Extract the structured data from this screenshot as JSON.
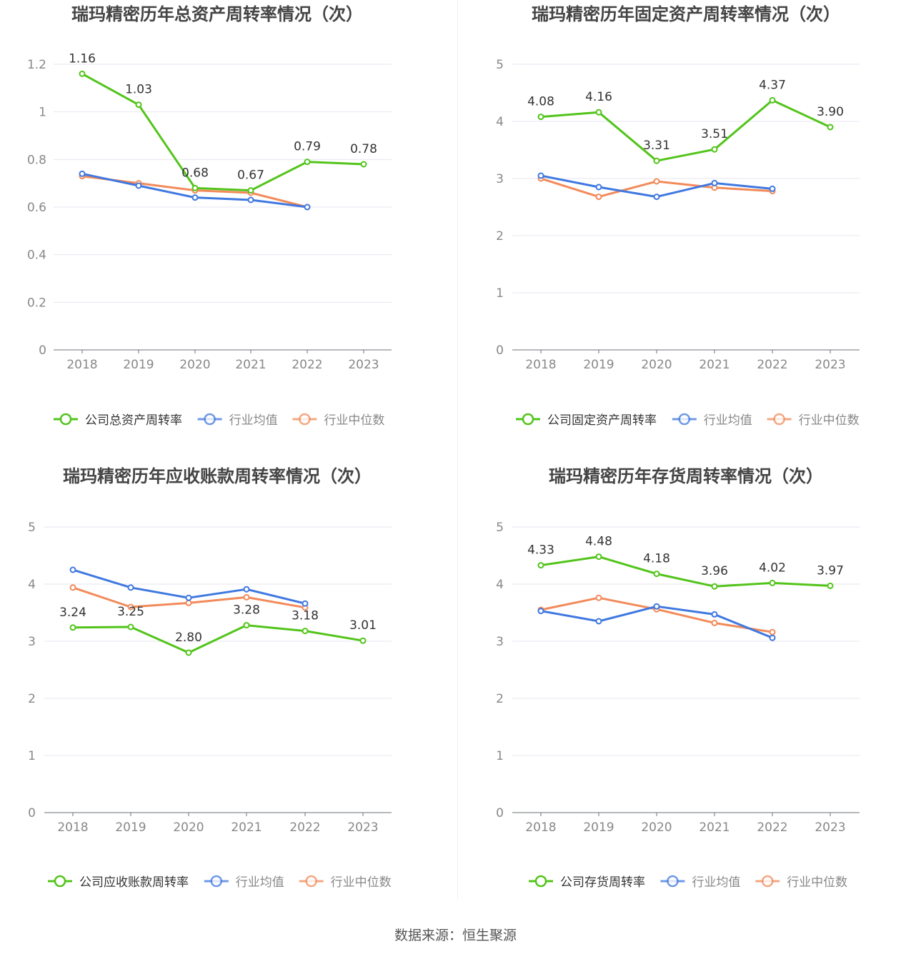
{
  "footer": "数据来源：恒生聚源",
  "legend": {
    "avg": "行业均值",
    "median": "行业中位数"
  },
  "colors": {
    "company": "#52c41a",
    "avg": "#3f78e0",
    "median": "#f28a5a"
  },
  "chart_data": [
    {
      "type": "line",
      "title": "瑞玛精密历年总资产周转率情况（次）",
      "categories": [
        "2018",
        "2019",
        "2020",
        "2021",
        "2022",
        "2023"
      ],
      "y_ticks": [
        "0",
        "0.2",
        "0.4",
        "0.6",
        "0.8",
        "1",
        "1.2"
      ],
      "ylim": [
        0,
        1.2
      ],
      "series": [
        {
          "name": "公司总资产周转率",
          "values": [
            1.16,
            1.03,
            0.68,
            0.67,
            0.79,
            0.78
          ],
          "labels": [
            "1.16",
            "1.03",
            "0.68",
            "0.67",
            "0.79",
            "0.78"
          ]
        },
        {
          "name": "行业均值",
          "values": [
            0.74,
            0.69,
            0.64,
            0.63,
            0.6,
            null
          ]
        },
        {
          "name": "行业中位数",
          "values": [
            0.73,
            0.7,
            0.67,
            0.66,
            0.6,
            null
          ]
        }
      ]
    },
    {
      "type": "line",
      "title": "瑞玛精密历年固定资产周转率情况（次）",
      "categories": [
        "2018",
        "2019",
        "2020",
        "2021",
        "2022",
        "2023"
      ],
      "y_ticks": [
        "0",
        "1",
        "2",
        "3",
        "4",
        "5"
      ],
      "ylim": [
        0,
        5
      ],
      "series": [
        {
          "name": "公司固定资产周转率",
          "values": [
            4.08,
            4.16,
            3.31,
            3.51,
            4.37,
            3.9
          ],
          "labels": [
            "4.08",
            "4.16",
            "3.31",
            "3.51",
            "4.37",
            "3.90"
          ]
        },
        {
          "name": "行业均值",
          "values": [
            3.05,
            2.85,
            2.68,
            2.92,
            2.82,
            null
          ]
        },
        {
          "name": "行业中位数",
          "values": [
            3.0,
            2.68,
            2.95,
            2.84,
            2.78,
            null
          ]
        }
      ]
    },
    {
      "type": "line",
      "title": "瑞玛精密历年应收账款周转率情况（次）",
      "categories": [
        "2018",
        "2019",
        "2020",
        "2021",
        "2022",
        "2023"
      ],
      "y_ticks": [
        "0",
        "1",
        "2",
        "3",
        "4",
        "5"
      ],
      "ylim": [
        0,
        5
      ],
      "series": [
        {
          "name": "公司应收账款周转率",
          "values": [
            3.24,
            3.25,
            2.8,
            3.28,
            3.18,
            3.01
          ],
          "labels": [
            "3.24",
            "3.25",
            "2.80",
            "3.28",
            "3.18",
            "3.01"
          ]
        },
        {
          "name": "行业均值",
          "values": [
            4.25,
            3.94,
            3.76,
            3.91,
            3.66,
            null
          ]
        },
        {
          "name": "行业中位数",
          "values": [
            3.94,
            3.6,
            3.67,
            3.77,
            3.59,
            null
          ]
        }
      ]
    },
    {
      "type": "line",
      "title": "瑞玛精密历年存货周转率情况（次）",
      "categories": [
        "2018",
        "2019",
        "2020",
        "2021",
        "2022",
        "2023"
      ],
      "y_ticks": [
        "0",
        "1",
        "2",
        "3",
        "4",
        "5"
      ],
      "ylim": [
        0,
        5
      ],
      "series": [
        {
          "name": "公司存货周转率",
          "values": [
            4.33,
            4.48,
            4.18,
            3.96,
            4.02,
            3.97
          ],
          "labels": [
            "4.33",
            "4.48",
            "4.18",
            "3.96",
            "4.02",
            "3.97"
          ]
        },
        {
          "name": "行业均值",
          "values": [
            3.53,
            3.35,
            3.61,
            3.47,
            3.06,
            null
          ]
        },
        {
          "name": "行业中位数",
          "values": [
            3.55,
            3.76,
            3.56,
            3.32,
            3.16,
            null
          ]
        }
      ]
    }
  ]
}
